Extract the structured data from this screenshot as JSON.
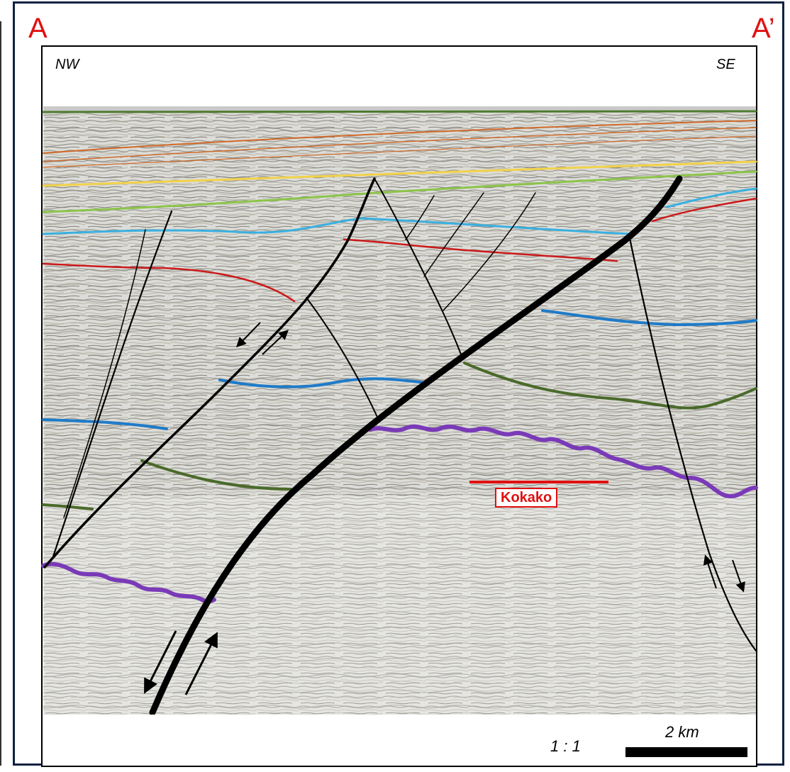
{
  "labels": {
    "start": "A",
    "end": "A’",
    "left_direction": "NW",
    "right_direction": "SE",
    "well": "Kokako",
    "scale_ratio": "1 : 1",
    "scale_length": "2 km"
  },
  "colors": {
    "frame": "#0e2140",
    "label_red": "#e01010",
    "horizon_top_green": "#4e7a2e",
    "horizon_orange": "#d06a2a",
    "horizon_yellow": "#f2d24a",
    "horizon_light_green": "#8cc44a",
    "horizon_cyan": "#3ab0e0",
    "horizon_red": "#cc1a1a",
    "horizon_blue": "#1f7bc8",
    "horizon_dark_green": "#4a6a2a",
    "horizon_purple": "#7a3ab8",
    "fault": "#000000"
  }
}
